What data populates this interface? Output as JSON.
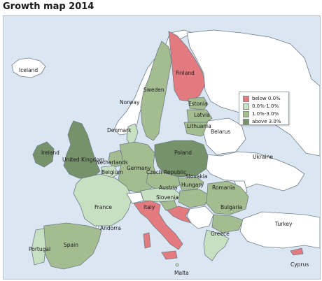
{
  "title": "Growth map 2014",
  "colors": {
    "sea": "#dbe6f3",
    "no_data": "#ffffff",
    "below_0": "#e27a80",
    "range_0_1": "#c8e0c2",
    "range_1_3": "#a3bd90",
    "above_3": "#76926a"
  },
  "legend": [
    {
      "label": "below 0.0%",
      "color": "#e27a80"
    },
    {
      "label": "0.0%-1.0%",
      "color": "#c8e0c2"
    },
    {
      "label": "1.0%-3.0%",
      "color": "#a3bd90"
    },
    {
      "label": "above 3.0%",
      "color": "#76926a"
    }
  ],
  "countries": {
    "iceland": "Iceland",
    "norway": "Norway",
    "sweden": "Sweden",
    "finland": "Finland",
    "estonia": "Estonia",
    "latvia": "Latvia",
    "lithuania": "Lithuania",
    "belarus": "Belarus",
    "denmark": "Denmark",
    "ireland": "Ireland",
    "united_kingdom": "United Kingdom",
    "netherlands": "Netherlands",
    "belgium": "Belgium",
    "germany": "Germany",
    "poland": "Poland",
    "ukraine": "Ukraine",
    "czech_republic": "Czech Republic",
    "slovakia": "Slovakia",
    "austria": "Austria",
    "hungary": "Hungary",
    "romania": "Romania",
    "slovenia": "Slovenia",
    "france": "France",
    "italy": "Italy",
    "bulgaria": "Bulgaria",
    "andorra": "Andorra",
    "portugal": "Portugal",
    "spain": "Spain",
    "greece": "Greece",
    "turkey": "Turkey",
    "malta": "Malta",
    "cyprus": "Cyprus"
  }
}
